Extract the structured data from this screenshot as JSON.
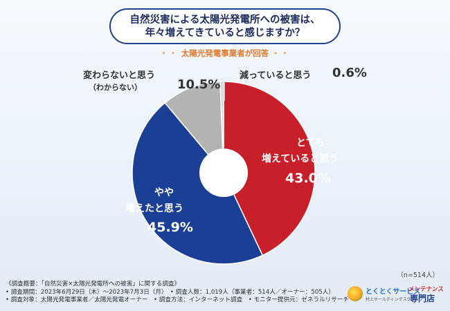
{
  "question": {
    "line1": "自然災害による太陽光発電所への被害は、",
    "line2": "年々増えてきていると感じますか？"
  },
  "respondent_note": {
    "dots": "・・",
    "text": "太陽光発電事業者が回答"
  },
  "sample_size": "（n=514人）",
  "colors": {
    "very_increased": "#c8202b",
    "somewhat_increased": "#1c3f96",
    "unchanged": "#b3b3b3",
    "decreased": "#d8d8d8",
    "question_border": "#1f3f8f",
    "accent_orange": "#e07a2e"
  },
  "chart_data": {
    "type": "pie",
    "donut": true,
    "start": "12 o'clock, clockwise",
    "slices": [
      {
        "key": "very_increased",
        "label_line1": "とても",
        "label_line2": "増えていると思う",
        "value": 43.0,
        "display": "43.0%"
      },
      {
        "key": "somewhat_increased",
        "label_line1": "やや",
        "label_line2": "増えたと思う",
        "value": 45.9,
        "display": "45.9%"
      },
      {
        "key": "unchanged",
        "label_line1": "変わらないと思う",
        "label_line2": "（わからない）",
        "value": 10.5,
        "display": "10.5%"
      },
      {
        "key": "decreased",
        "label_line1": "減っていると思う",
        "label_line2": "",
        "value": 0.6,
        "display": "0.6%"
      }
    ]
  },
  "footer": {
    "survey_outline": "《調査概要：「自然災害×太陽光発電所への被害」に関する調査》",
    "row2": "• 調査期間：2023年6月29日（木）～2023年7月3日（月）　• 調査人数：1,019人（事業者：514人／オーナー：505人）",
    "row3": "• 調査対象：太陽光発電事業者／太陽光発電オーナー　• 調査方法：インターネット調査　• モニター提供元：ゼネラルリサーチ"
  },
  "logo": {
    "brand": "とくとくサービス",
    "group": "村上ホールディングスグループ",
    "maint": "メンテナンス",
    "store": "専門店"
  }
}
